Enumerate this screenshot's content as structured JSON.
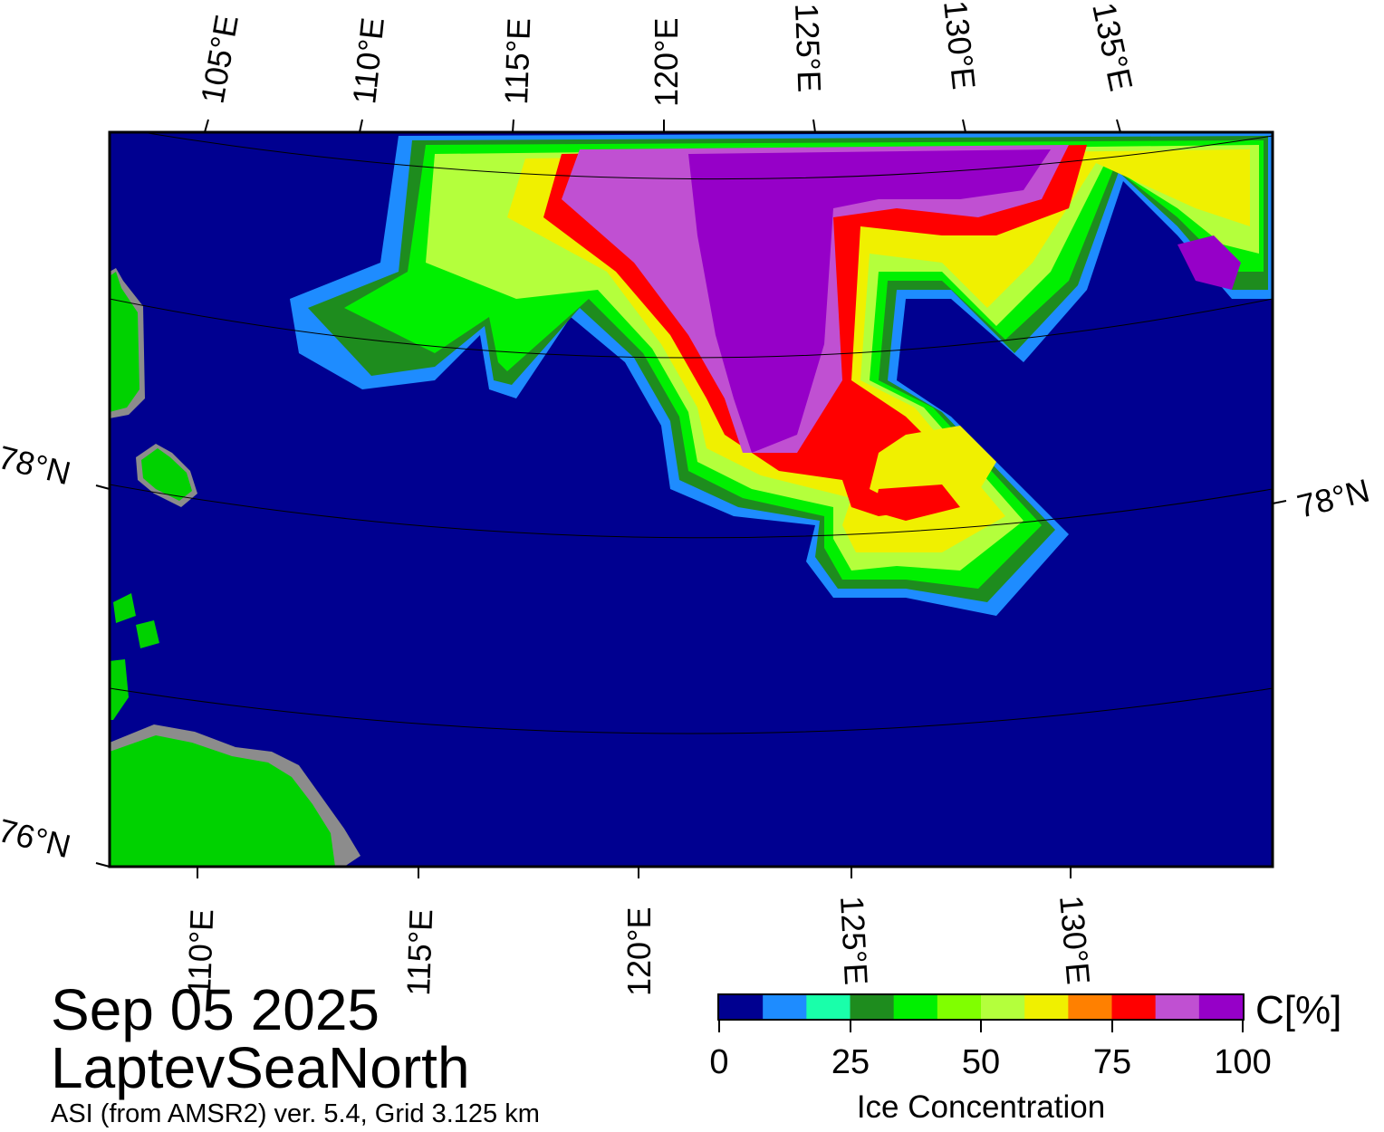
{
  "date": "Sep 05 2025",
  "region": "LaptevSeaNorth",
  "source": "ASI (from AMSR2) ver. 5.4,  Grid 3.125 km",
  "colors": {
    "ocean": "#000090",
    "land": "#00d200",
    "coast": "#8c8c8c",
    "graticule": "#000000"
  },
  "top_lon_labels": [
    "105°E",
    "110°E",
    "115°E",
    "120°E",
    "125°E",
    "130°E",
    "135°E"
  ],
  "bottom_lon_labels": [
    "110°E",
    "115°E",
    "120°E",
    "125°E",
    "130°E"
  ],
  "lat_labels": {
    "left_top": "78°N",
    "left_bottom": "76°N",
    "right": "78°N"
  },
  "colorbar": {
    "title": "Ice Concentration",
    "unit": "C[%]",
    "ticks": [
      "0",
      "25",
      "50",
      "75",
      "100"
    ],
    "colors": [
      "#000090",
      "#1e8cff",
      "#19ffaa",
      "#1e8c1e",
      "#00f000",
      "#80ff00",
      "#b4ff3c",
      "#f0f000",
      "#ff8000",
      "#ff0000",
      "#c050d2",
      "#9600c8"
    ]
  }
}
